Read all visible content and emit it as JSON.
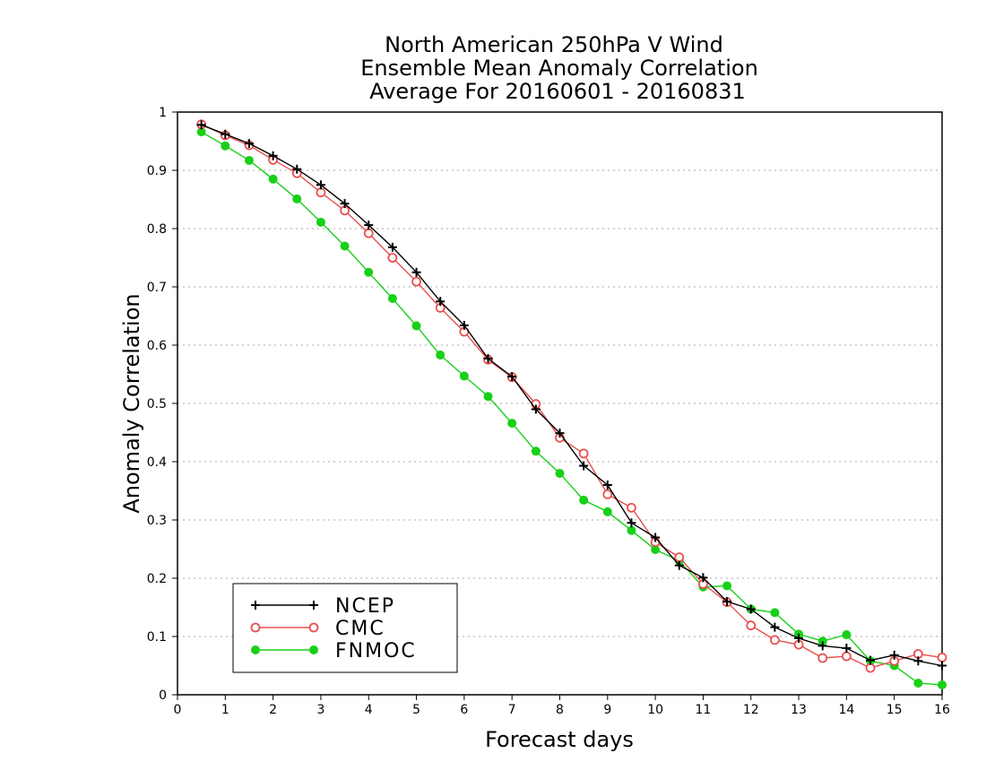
{
  "chart_data": {
    "type": "line",
    "title": [
      "North American 250hPa V Wind",
      "Ensemble Mean Anomaly Correlation",
      "Average For 20160601 - 20160831"
    ],
    "xlabel": "Forecast days",
    "ylabel": "Anomaly Correlation",
    "xlim": [
      0,
      16
    ],
    "ylim": [
      0,
      1
    ],
    "x_ticks": [
      "0",
      "1",
      "2",
      "3",
      "4",
      "5",
      "6",
      "7",
      "8",
      "9",
      "10",
      "11",
      "12",
      "13",
      "14",
      "15",
      "16"
    ],
    "y_ticks": [
      "0",
      "0.1",
      "0.2",
      "0.3",
      "0.4",
      "0.5",
      "0.6",
      "0.7",
      "0.8",
      "0.9",
      "1"
    ],
    "grid": "horizontal-dotted",
    "legend_position": "bottom-left",
    "x": [
      0.5,
      1,
      1.5,
      2,
      2.5,
      3,
      3.5,
      4,
      4.5,
      5,
      5.5,
      6,
      6.5,
      7,
      7.5,
      8,
      8.5,
      9,
      9.5,
      10,
      10.5,
      11,
      11.5,
      12,
      12.5,
      13,
      13.5,
      14,
      14.5,
      15,
      15.5,
      16
    ],
    "series": [
      {
        "name": "NCEP",
        "color": "#000000",
        "marker": "plus",
        "values": [
          0.978,
          0.962,
          0.946,
          0.925,
          0.902,
          0.875,
          0.843,
          0.806,
          0.768,
          0.725,
          0.675,
          0.634,
          0.577,
          0.546,
          0.49,
          0.449,
          0.393,
          0.36,
          0.295,
          0.27,
          0.222,
          0.201,
          0.16,
          0.147,
          0.116,
          0.097,
          0.084,
          0.08,
          0.059,
          0.068,
          0.058,
          0.05
        ]
      },
      {
        "name": "CMC",
        "color": "#e8504f",
        "marker": "open-circle",
        "values": [
          0.979,
          0.96,
          0.943,
          0.918,
          0.895,
          0.862,
          0.831,
          0.792,
          0.75,
          0.709,
          0.664,
          0.623,
          0.575,
          0.545,
          0.499,
          0.441,
          0.414,
          0.344,
          0.321,
          0.262,
          0.236,
          0.19,
          0.159,
          0.119,
          0.094,
          0.086,
          0.063,
          0.066,
          0.046,
          0.058,
          0.07,
          0.064
        ]
      },
      {
        "name": "FNMOC",
        "color": "#18d018",
        "marker": "filled-circle",
        "values": [
          0.966,
          0.942,
          0.917,
          0.885,
          0.851,
          0.811,
          0.77,
          0.725,
          0.68,
          0.633,
          0.583,
          0.547,
          0.512,
          0.466,
          0.418,
          0.38,
          0.334,
          0.314,
          0.282,
          0.249,
          0.23,
          0.185,
          0.187,
          0.147,
          0.141,
          0.104,
          0.092,
          0.103,
          0.058,
          0.05,
          0.02,
          0.017
        ]
      }
    ]
  }
}
